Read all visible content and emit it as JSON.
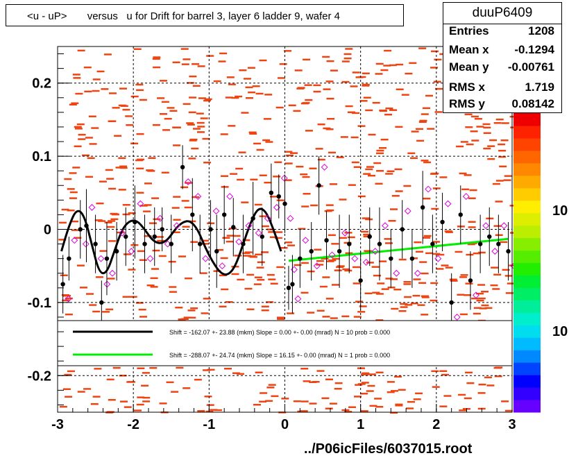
{
  "title": "<u - uP>       versus   u for Drift for barrel 3, layer 6 ladder 9, wafer 4",
  "stats": {
    "name": "duuP6409",
    "entries_label": "Entries",
    "entries": "1208",
    "meanx_label": "Mean x",
    "meanx": "-0.1294",
    "meany_label": "Mean y",
    "meany": "-0.00761",
    "rmsx_label": "RMS x",
    "rmsx": "1.719",
    "rmsy_label": "RMS y",
    "rmsy": "0.08142"
  },
  "footer": "../P06icFiles/6037015.root",
  "colorbar": {
    "labels": [
      "10",
      "10"
    ],
    "colors": [
      "#6600ff",
      "#3300ff",
      "#0000ff",
      "#0044ff",
      "#0088ff",
      "#00bbff",
      "#00ddee",
      "#00eecc",
      "#00ee99",
      "#00ee66",
      "#00ee33",
      "#22ee00",
      "#55ee00",
      "#88ee00",
      "#bbee00",
      "#ddee00",
      "#ffee00",
      "#ffcc00",
      "#ffaa00",
      "#ff8800",
      "#ff6600",
      "#ff4400",
      "#ff2200",
      "#ee0000"
    ]
  },
  "legend": {
    "entries": [
      {
        "color": "#000000",
        "text": "Shift =  -162.07 +- 23.88 (mkm) Slope =    0.00 +- 0.00 (mrad)  N = 10 prob = 0.000"
      },
      {
        "color": "#00ee00",
        "text": "Shift =  -288.07 +- 24.74 (mkm) Slope =    16.15 +- 0.00 (mrad)  N = 1 prob = 0.000"
      }
    ]
  },
  "chart_data": {
    "type": "scatter",
    "xlim": [
      -3,
      3
    ],
    "ylim": [
      -0.25,
      0.25
    ],
    "xticks": [
      -3,
      -2,
      -1,
      0,
      1,
      2,
      3
    ],
    "yticks": [
      -0.2,
      -0.1,
      0,
      0.1,
      0.2
    ],
    "xtick_labels": [
      "-3",
      "-2",
      "-1",
      "0",
      "1",
      "2",
      "3"
    ],
    "ytick_labels": [
      "-0.2",
      "-0.1",
      "0",
      "0.1",
      "0.2"
    ],
    "grid": true,
    "colors": {
      "hist": "#ee4411",
      "profile": "#000000",
      "open_marker": "#dd00dd",
      "fit_black": "#000000",
      "fit_green": "#00ee00"
    },
    "profile_points": [
      {
        "x": -2.93,
        "y": -0.075,
        "e": 0.04
      },
      {
        "x": -2.85,
        "y": -0.04,
        "e": 0.03
      },
      {
        "x": -2.7,
        "y": 0.0,
        "e": 0.04
      },
      {
        "x": -2.62,
        "y": 0.005,
        "e": 0.05
      },
      {
        "x": -2.5,
        "y": -0.02,
        "e": 0.04
      },
      {
        "x": -2.42,
        "y": -0.1,
        "e": 0.03
      },
      {
        "x": -2.35,
        "y": -0.04,
        "e": 0.05
      },
      {
        "x": -2.22,
        "y": -0.03,
        "e": 0.04
      },
      {
        "x": -2.1,
        "y": -0.01,
        "e": 0.04
      },
      {
        "x": -1.98,
        "y": 0.01,
        "e": 0.05
      },
      {
        "x": -1.85,
        "y": -0.02,
        "e": 0.04
      },
      {
        "x": -1.72,
        "y": -0.01,
        "e": 0.04
      },
      {
        "x": -1.62,
        "y": 0.0,
        "e": 0.03
      },
      {
        "x": -1.5,
        "y": -0.02,
        "e": 0.04
      },
      {
        "x": -1.35,
        "y": 0.085,
        "e": 0.03
      },
      {
        "x": -1.22,
        "y": 0.02,
        "e": 0.05
      },
      {
        "x": -1.12,
        "y": -0.02,
        "e": 0.04
      },
      {
        "x": -0.98,
        "y": 0.0,
        "e": 0.04
      },
      {
        "x": -0.9,
        "y": -0.03,
        "e": 0.05
      },
      {
        "x": -0.8,
        "y": 0.02,
        "e": 0.04
      },
      {
        "x": -0.68,
        "y": 0.003,
        "e": 0.04
      },
      {
        "x": -0.55,
        "y": -0.02,
        "e": 0.04
      },
      {
        "x": -0.42,
        "y": 0.015,
        "e": 0.05
      },
      {
        "x": -0.3,
        "y": -0.01,
        "e": 0.04
      },
      {
        "x": -0.18,
        "y": 0.05,
        "e": 0.04
      },
      {
        "x": -0.08,
        "y": 0.045,
        "e": 0.03
      },
      {
        "x": 0.0,
        "y": 0.035,
        "e": 0.04
      },
      {
        "x": 0.05,
        "y": -0.08,
        "e": 0.03
      },
      {
        "x": 0.1,
        "y": -0.075,
        "e": 0.04
      },
      {
        "x": 0.2,
        "y": -0.04,
        "e": 0.04
      },
      {
        "x": 0.35,
        "y": -0.03,
        "e": 0.04
      },
      {
        "x": 0.45,
        "y": 0.06,
        "e": 0.04
      },
      {
        "x": 0.55,
        "y": -0.015,
        "e": 0.04
      },
      {
        "x": 0.72,
        "y": -0.03,
        "e": 0.05
      },
      {
        "x": 0.85,
        "y": -0.02,
        "e": 0.04
      },
      {
        "x": 1.0,
        "y": -0.07,
        "e": 0.04
      },
      {
        "x": 1.12,
        "y": -0.01,
        "e": 0.04
      },
      {
        "x": 1.25,
        "y": -0.02,
        "e": 0.05
      },
      {
        "x": 1.4,
        "y": -0.04,
        "e": 0.04
      },
      {
        "x": 1.55,
        "y": 0.0,
        "e": 0.04
      },
      {
        "x": 1.68,
        "y": -0.04,
        "e": 0.04
      },
      {
        "x": 1.82,
        "y": 0.03,
        "e": 0.05
      },
      {
        "x": 1.95,
        "y": -0.02,
        "e": 0.04
      },
      {
        "x": 2.08,
        "y": 0.01,
        "e": 0.04
      },
      {
        "x": 2.2,
        "y": -0.1,
        "e": 0.04
      },
      {
        "x": 2.32,
        "y": 0.02,
        "e": 0.04
      },
      {
        "x": 2.45,
        "y": -0.07,
        "e": 0.04
      },
      {
        "x": 2.58,
        "y": -0.02,
        "e": 0.04
      },
      {
        "x": 2.7,
        "y": -0.01,
        "e": 0.04
      },
      {
        "x": 2.82,
        "y": -0.02,
        "e": 0.04
      },
      {
        "x": 2.95,
        "y": -0.03,
        "e": 0.04
      }
    ],
    "fit_black": {
      "x_range": [
        -2.95,
        -0.05
      ],
      "points": [
        [
          -2.95,
          -0.03
        ],
        [
          -2.85,
          0.005
        ],
        [
          -2.75,
          0.028
        ],
        [
          -2.65,
          0.02
        ],
        [
          -2.55,
          -0.02
        ],
        [
          -2.45,
          -0.06
        ],
        [
          -2.35,
          -0.06
        ],
        [
          -2.25,
          -0.03
        ],
        [
          -2.15,
          0.0
        ],
        [
          -2.05,
          0.012
        ],
        [
          -1.95,
          0.012
        ],
        [
          -1.85,
          0.0
        ],
        [
          -1.75,
          -0.015
        ],
        [
          -1.65,
          -0.02
        ],
        [
          -1.55,
          -0.015
        ],
        [
          -1.45,
          0.0
        ],
        [
          -1.35,
          0.01
        ],
        [
          -1.25,
          0.012
        ],
        [
          -1.15,
          0.0
        ],
        [
          -1.05,
          -0.025
        ],
        [
          -0.95,
          -0.045
        ],
        [
          -0.85,
          -0.06
        ],
        [
          -0.75,
          -0.063
        ],
        [
          -0.65,
          -0.05
        ],
        [
          -0.55,
          -0.02
        ],
        [
          -0.45,
          0.01
        ],
        [
          -0.35,
          0.03
        ],
        [
          -0.25,
          0.025
        ],
        [
          -0.15,
          0.0
        ],
        [
          -0.05,
          -0.03
        ]
      ]
    },
    "fit_green": {
      "x": [
        0.05,
        2.95
      ],
      "y": [
        -0.043,
        -0.013
      ]
    }
  }
}
